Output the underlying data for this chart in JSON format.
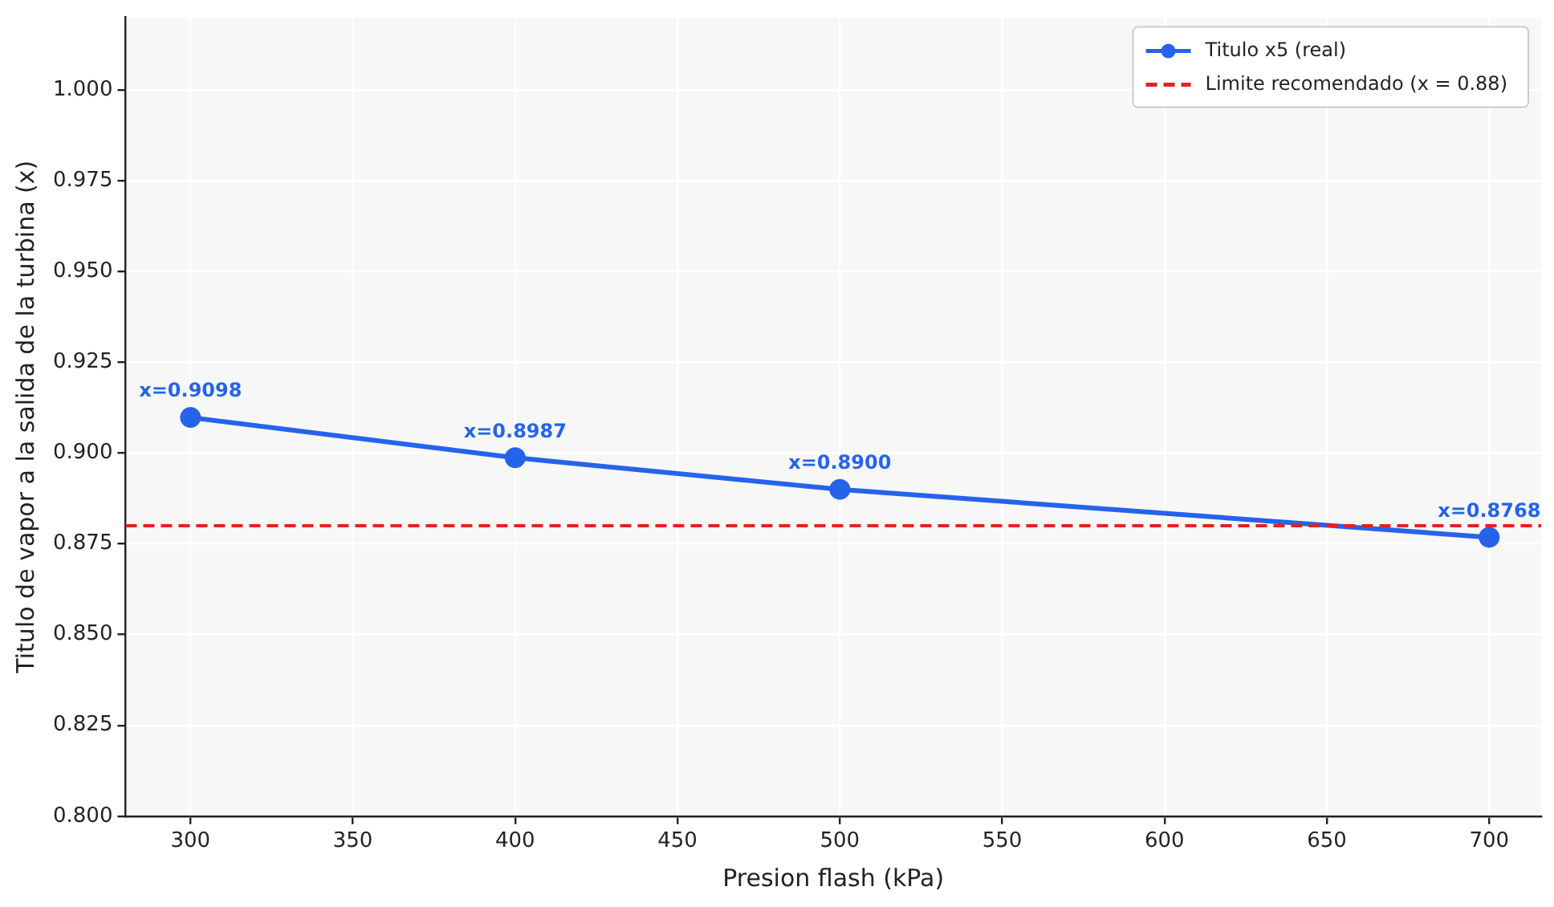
{
  "chart_data": {
    "type": "line",
    "xlabel": "Presion flash (kPa)",
    "ylabel": "Titulo de vapor a la salida de la turbina (x)",
    "x": [
      300,
      400,
      500,
      700
    ],
    "series": [
      {
        "name": "Titulo x5 (real)",
        "color": "#2563eb",
        "values": [
          0.9098,
          0.8987,
          0.89,
          0.8768
        ],
        "value_labels": [
          "x=0.9098",
          "x=0.8987",
          "x=0.8900",
          "x=0.8768"
        ]
      }
    ],
    "xlim": [
      280,
      716
    ],
    "xticks": [
      300,
      350,
      400,
      450,
      500,
      550,
      600,
      650,
      700
    ],
    "ylim": [
      0.8,
      1.02
    ],
    "yticks": [
      {
        "value": 0.8,
        "label": "0.800"
      },
      {
        "value": 0.825,
        "label": "0.825"
      },
      {
        "value": 0.85,
        "label": "0.850"
      },
      {
        "value": 0.875,
        "label": "0.875"
      },
      {
        "value": 0.9,
        "label": "0.900"
      },
      {
        "value": 0.925,
        "label": "0.925"
      },
      {
        "value": 0.95,
        "label": "0.950"
      },
      {
        "value": 0.975,
        "label": "0.975"
      },
      {
        "value": 1.0,
        "label": "1.000"
      }
    ],
    "ref_lines": [
      {
        "axis": "y",
        "value": 0.88,
        "label": "Limite recomendado (x = 0.88)",
        "color": "#e32222",
        "line_style": "dashed"
      }
    ],
    "grid": true,
    "legend": "top right",
    "marker": "circle",
    "line_style": "solid"
  }
}
